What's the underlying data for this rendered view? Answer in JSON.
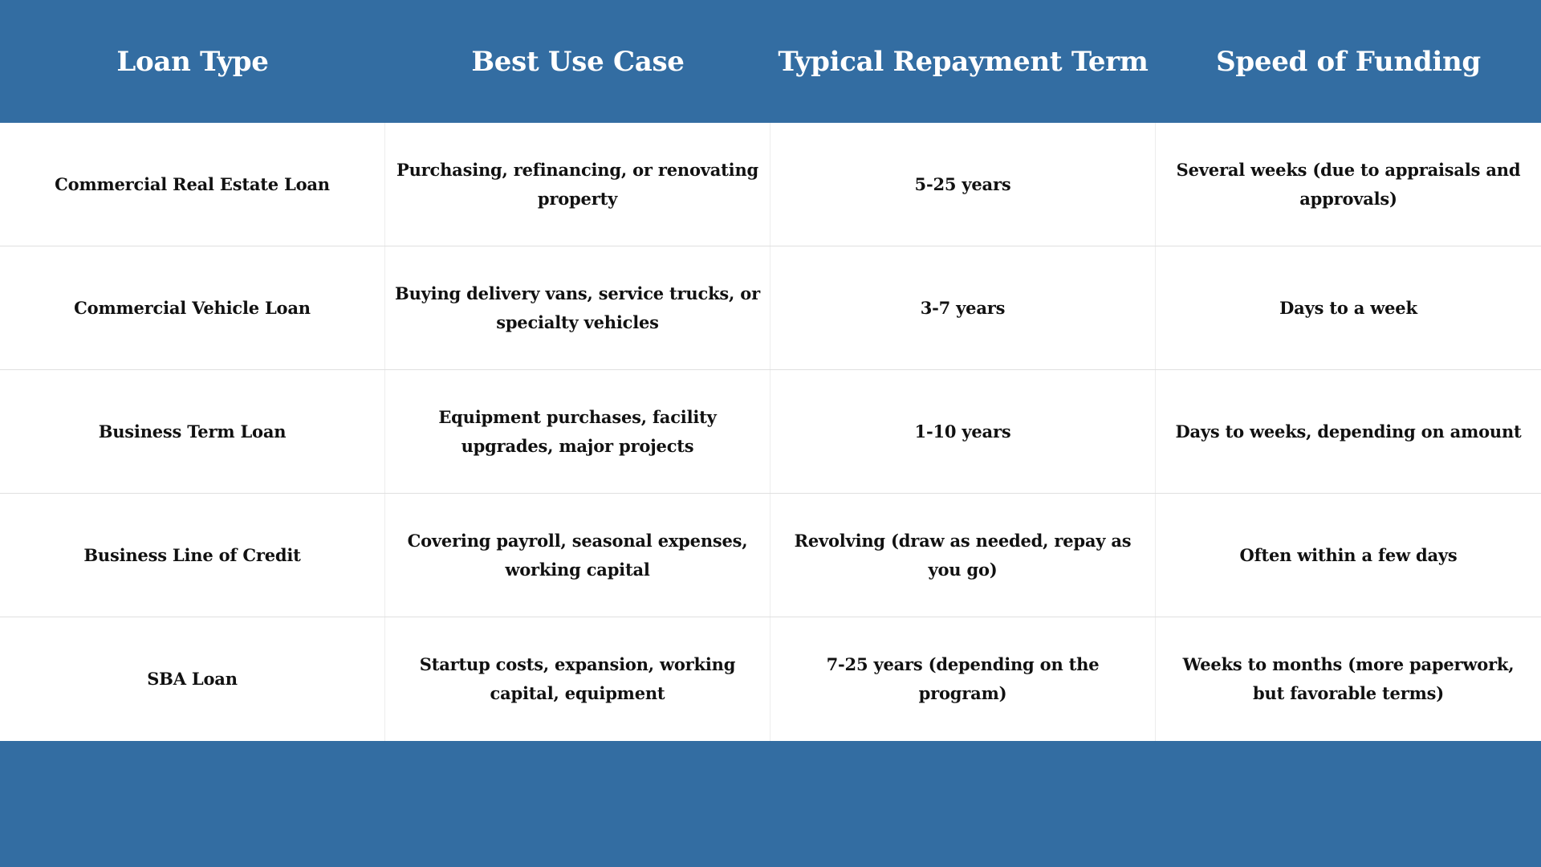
{
  "chart_data": {
    "type": "table",
    "columns": [
      "Loan Type",
      "Best Use Case",
      "Typical Repayment Term",
      "Speed of Funding"
    ],
    "rows": [
      [
        "Commercial Real Estate Loan",
        "Purchasing, refinancing, or renovating property",
        "5-25 years",
        "Several weeks (due to appraisals and approvals)"
      ],
      [
        "Commercial Vehicle Loan",
        "Buying delivery vans, service trucks, or specialty vehicles",
        "3-7 years",
        "Days to a week"
      ],
      [
        "Business Term Loan",
        "Equipment purchases, facility upgrades, major projects",
        "1-10 years",
        "Days to weeks, depending on amount"
      ],
      [
        "Business Line of Credit",
        "Covering payroll, seasonal expenses, working capital",
        "Revolving (draw as needed, repay as you go)",
        "Often within a few days"
      ],
      [
        "SBA Loan",
        "Startup costs, expansion, working capital, equipment",
        "7-25 years (depending on the program)",
        "Weeks to months (more paperwork, but favorable terms)"
      ]
    ],
    "layout_hints": {
      "grid": "light horizontal and vertical dividers between body cells only",
      "header_band": "solid blue, white bold slab-serif text",
      "footer_band": "solid blue, empty"
    }
  },
  "colors": {
    "header_bg": "#336da2",
    "header_text": "#ffffff",
    "row_bg": "#ffffff",
    "body_text": "#111111",
    "grid_line_horizontal": "#e0e0e0",
    "grid_line_vertical": "#ededed",
    "footer_bg": "#336da2"
  }
}
